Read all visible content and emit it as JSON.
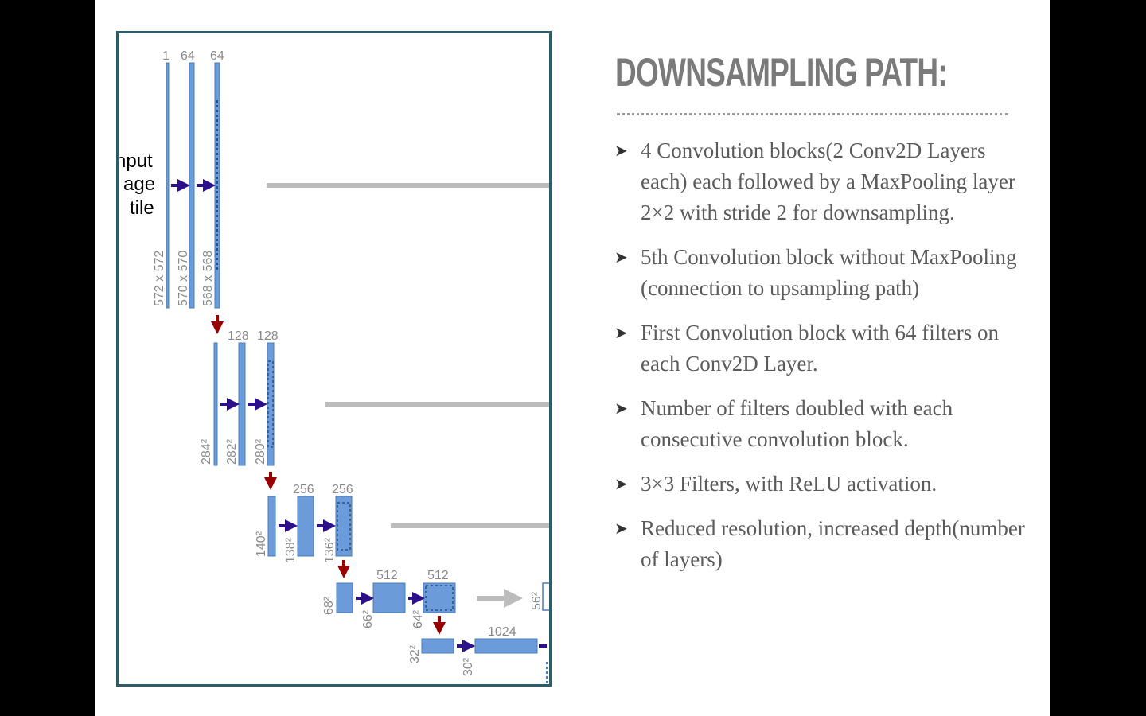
{
  "slide": {
    "title": "DOWNSAMPLING PATH:",
    "bullet_icon": "arrowhead-icon",
    "bullets": [
      "4 Convolution blocks(2 Conv2D Layers each) each followed by a MaxPooling layer 2×2 with stride 2 for downsampling.",
      "5th Convolution block without MaxPooling (connection to upsampling path)",
      "First Convolution block with 64 filters on each Conv2D Layer.",
      "Number of filters doubled with each consecutive convolution block.",
      "3×3 Filters, with ReLU activation.",
      "Reduced resolution, increased depth(number of layers)"
    ]
  },
  "diagram": {
    "input_label": [
      "nput",
      "age",
      "tile"
    ],
    "colors": {
      "block": "#6b9bd8",
      "block_edge": "#4a7dbd",
      "conv_arrow": "#2e0f8c",
      "pool_arrow": "#990000",
      "copy_arrow": "#bcbcbc",
      "frame": "#2f5c6b"
    },
    "levels": [
      {
        "channels": [
          "1",
          "64",
          "64"
        ],
        "sizes": [
          "572 x 572",
          "570 x 570",
          "568 x 568"
        ]
      },
      {
        "channels": [
          "128",
          "128"
        ],
        "sizes": [
          "284²",
          "282²",
          "280²"
        ]
      },
      {
        "channels": [
          "256",
          "256"
        ],
        "sizes": [
          "140²",
          "138²",
          "136²"
        ]
      },
      {
        "channels": [
          "512",
          "512"
        ],
        "sizes": [
          "68²",
          "66²",
          "64²"
        ],
        "copy_target": "56²"
      },
      {
        "channels": [
          "1024"
        ],
        "sizes": [
          "32²",
          "30²"
        ]
      }
    ]
  }
}
